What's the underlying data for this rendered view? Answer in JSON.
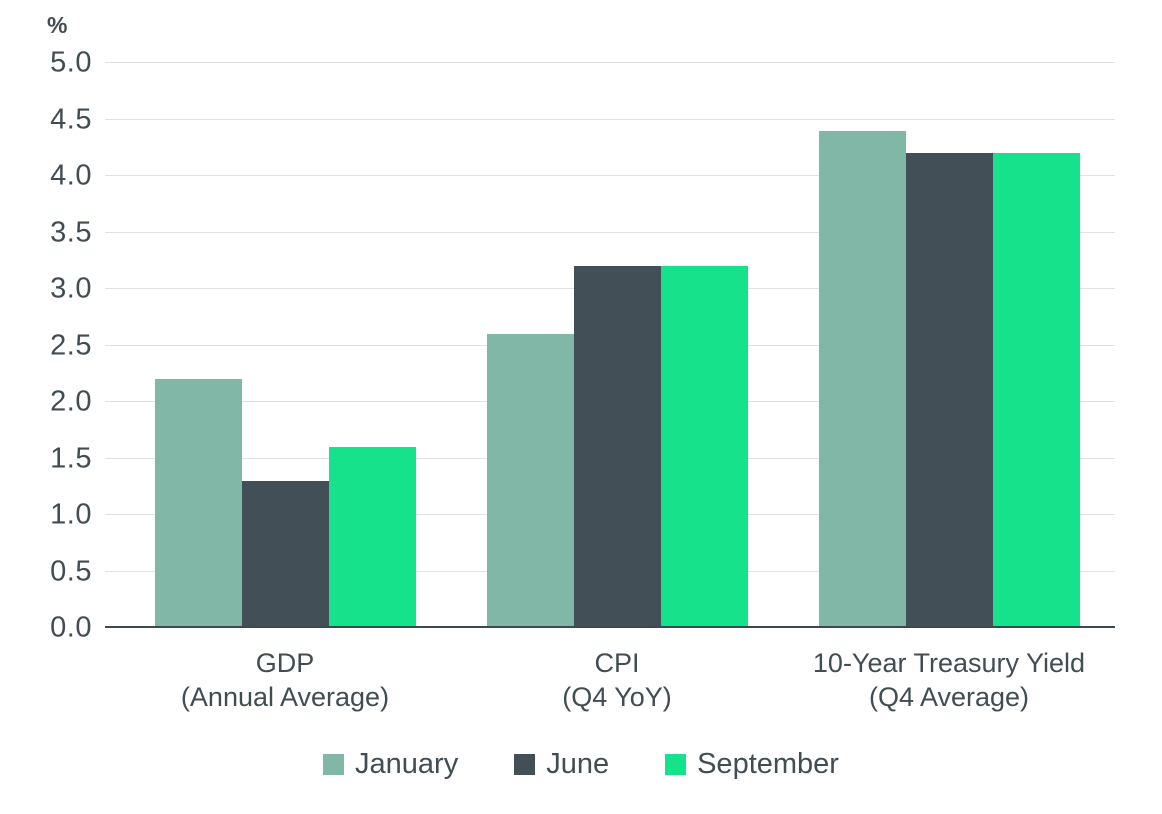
{
  "chart_data": {
    "type": "bar",
    "title": "",
    "xlabel": "",
    "ylabel": "%",
    "ylim": [
      0,
      5
    ],
    "ytick_step": 0.5,
    "yticks": [
      "0.0",
      "0.5",
      "1.0",
      "1.5",
      "2.0",
      "2.5",
      "3.0",
      "3.5",
      "4.0",
      "4.5",
      "5.0"
    ],
    "grid": true,
    "legend_position": "bottom",
    "categories": [
      "GDP (Annual Average)",
      "CPI (Q4 YoY)",
      "10-Year Treasury Yield (Q4 Average)"
    ],
    "category_lines": [
      [
        "GDP",
        "(Annual Average)"
      ],
      [
        "CPI",
        "(Q4 YoY)"
      ],
      [
        "10-Year Treasury Yield",
        "(Q4 Average)"
      ]
    ],
    "series": [
      {
        "name": "January",
        "color": "#80B7A7",
        "values": [
          2.2,
          2.6,
          4.4
        ]
      },
      {
        "name": "June",
        "color": "#424F57",
        "values": [
          1.3,
          3.2,
          4.2
        ]
      },
      {
        "name": "September",
        "color": "#17E28C",
        "values": [
          1.6,
          3.2,
          4.2
        ]
      }
    ]
  },
  "colors": {
    "background": "#FFFFFF",
    "text": "#414D52",
    "gridline": "#E2E2E2",
    "axis_line": "#3C4A50"
  }
}
